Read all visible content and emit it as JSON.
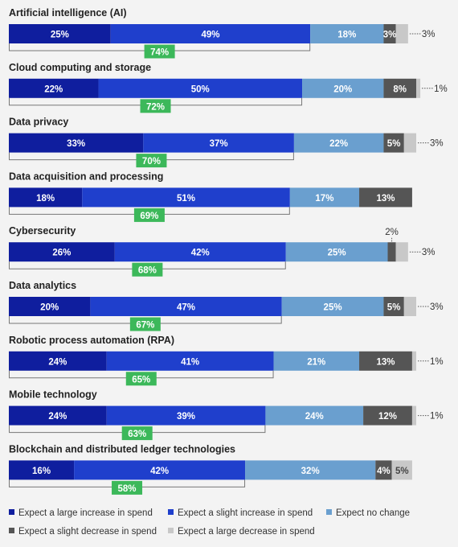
{
  "colors": {
    "large_increase": "#0f1e9e",
    "slight_increase": "#1f3fcc",
    "no_change": "#6a9fcf",
    "slight_decrease": "#555555",
    "large_decrease": "#c8c8c8",
    "total_badge": "#3cb85a",
    "background": "#f3f3f3"
  },
  "chart_data": {
    "type": "bar",
    "orientation": "horizontal-stacked",
    "series": [
      {
        "name": "Expect a large increase in spend",
        "values": [
          25,
          22,
          33,
          18,
          26,
          20,
          24,
          24,
          16
        ]
      },
      {
        "name": "Expect a slight increase in spend",
        "values": [
          49,
          50,
          37,
          51,
          42,
          47,
          41,
          39,
          42
        ]
      },
      {
        "name": "Expect no change",
        "values": [
          18,
          20,
          22,
          17,
          25,
          25,
          21,
          24,
          32
        ]
      },
      {
        "name": "Expect a slight decrease in spend",
        "values": [
          3,
          8,
          5,
          13,
          2,
          5,
          13,
          12,
          4
        ]
      },
      {
        "name": "Expect a large decrease in spend",
        "values": [
          3,
          1,
          3,
          0,
          3,
          3,
          1,
          1,
          5
        ]
      }
    ],
    "categories": [
      {
        "title": "Artificial intelligence (AI)",
        "values": [
          25,
          49,
          18,
          3,
          3
        ],
        "labels": [
          "25%",
          "49%",
          "18%",
          "3%",
          ""
        ],
        "callout": "3%",
        "callout_pos": "right",
        "total": "74%"
      },
      {
        "title": "Cloud computing and storage",
        "values": [
          22,
          50,
          20,
          8,
          1
        ],
        "labels": [
          "22%",
          "50%",
          "20%",
          "8%",
          ""
        ],
        "callout": "1%",
        "callout_pos": "right",
        "total": "72%"
      },
      {
        "title": "Data privacy",
        "values": [
          33,
          37,
          22,
          5,
          3
        ],
        "labels": [
          "33%",
          "37%",
          "22%",
          "5%",
          ""
        ],
        "callout": "3%",
        "callout_pos": "right",
        "total": "70%"
      },
      {
        "title": "Data acquisition and processing",
        "values": [
          18,
          51,
          17,
          13,
          0
        ],
        "labels": [
          "18%",
          "51%",
          "17%",
          "13%",
          ""
        ],
        "callout": "",
        "callout_pos": "none",
        "total": "69%"
      },
      {
        "title": "Cybersecurity",
        "values": [
          26,
          42,
          25,
          2,
          3
        ],
        "labels": [
          "26%",
          "42%",
          "25%",
          "",
          ""
        ],
        "callout": "3%",
        "callout_pos": "right",
        "callout_top": "2%",
        "total": "68%"
      },
      {
        "title": "Data analytics",
        "values": [
          20,
          47,
          25,
          5,
          3
        ],
        "labels": [
          "20%",
          "47%",
          "25%",
          "5%",
          ""
        ],
        "callout": "3%",
        "callout_pos": "right",
        "total": "67%"
      },
      {
        "title": "Robotic process automation (RPA)",
        "values": [
          24,
          41,
          21,
          13,
          1
        ],
        "labels": [
          "24%",
          "41%",
          "21%",
          "13%",
          ""
        ],
        "callout": "1%",
        "callout_pos": "right",
        "total": "65%"
      },
      {
        "title": "Mobile technology",
        "values": [
          24,
          39,
          24,
          12,
          1
        ],
        "labels": [
          "24%",
          "39%",
          "24%",
          "12%",
          ""
        ],
        "callout": "1%",
        "callout_pos": "right",
        "total": "63%"
      },
      {
        "title": "Blockchain and distributed ledger technologies",
        "values": [
          16,
          42,
          32,
          4,
          5
        ],
        "labels": [
          "16%",
          "42%",
          "32%",
          "4%",
          "5%"
        ],
        "callout": "",
        "callout_pos": "none",
        "total": "58%"
      }
    ]
  }
}
